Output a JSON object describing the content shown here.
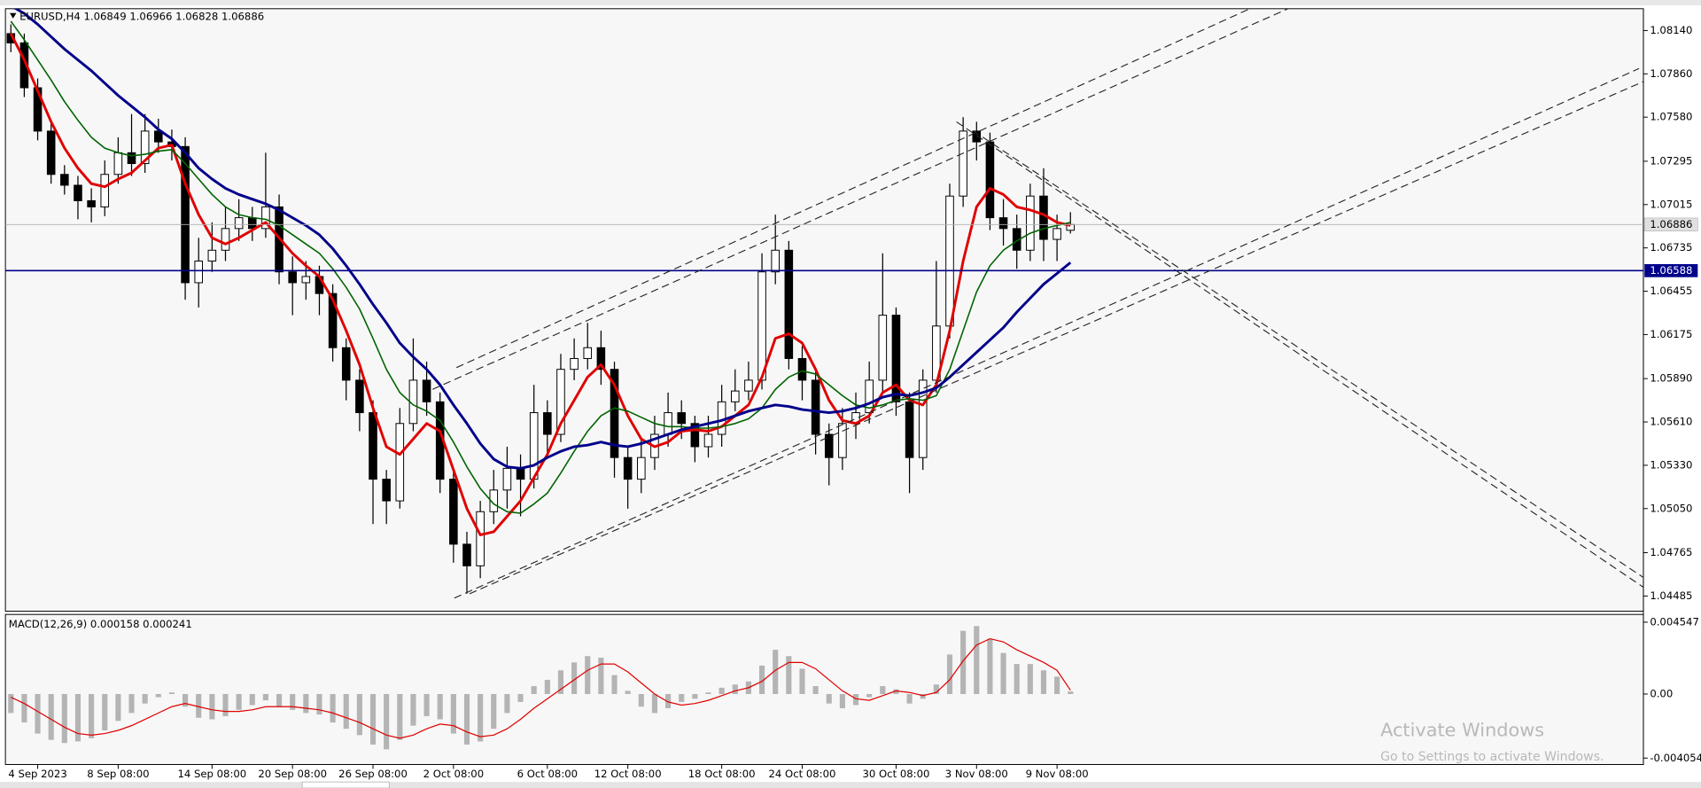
{
  "chart_data": [
    {
      "type": "candlestick",
      "title": "EURUSD,H4",
      "categories": [
        null,
        null,
        "4 Sep 2023",
        null,
        null,
        null,
        null,
        null,
        "8 Sep 08:00",
        null,
        null,
        null,
        null,
        null,
        null,
        "14 Sep 08:00",
        null,
        null,
        null,
        null,
        null,
        "20 Sep 08:00",
        null,
        null,
        null,
        null,
        null,
        "26 Sep 08:00",
        null,
        null,
        null,
        null,
        null,
        "2 Oct 08:00",
        null,
        null,
        null,
        null,
        null,
        null,
        "6 Oct 08:00",
        null,
        null,
        null,
        null,
        null,
        "12 Oct 08:00",
        null,
        null,
        null,
        null,
        null,
        null,
        "18 Oct 08:00",
        null,
        null,
        null,
        null,
        null,
        "24 Oct 08:00",
        null,
        null,
        null,
        null,
        null,
        null,
        "30 Oct 08:00",
        null,
        null,
        null,
        null,
        null,
        "3 Nov 08:00",
        null,
        null,
        null,
        null,
        null,
        "9 Nov 08:00",
        null
      ],
      "open": [
        1.0812,
        1.0806,
        1.0777,
        1.0749,
        1.0721,
        1.0714,
        1.0704,
        1.07,
        1.0721,
        1.0735,
        1.0728,
        1.0749,
        1.0742,
        1.0739,
        1.0651,
        1.0665,
        1.0672,
        1.0686,
        1.0693,
        1.0686,
        1.07,
        1.0658,
        1.0651,
        1.0655,
        1.0644,
        1.0609,
        1.0588,
        1.0567,
        1.0524,
        1.051,
        1.056,
        1.0588,
        1.0574,
        1.0524,
        1.0482,
        1.0468,
        1.0503,
        1.0517,
        1.0531,
        1.0524,
        1.0567,
        1.0553,
        1.0595,
        1.0602,
        1.0609,
        1.0595,
        1.0538,
        1.0524,
        1.0538,
        1.0553,
        1.0567,
        1.056,
        1.0545,
        1.0553,
        1.0574,
        1.0581,
        1.0588,
        1.0658,
        1.0672,
        1.0602,
        1.0588,
        1.0553,
        1.0538,
        1.056,
        1.0567,
        1.0588,
        1.063,
        1.0574,
        1.0538,
        1.0588,
        1.0623,
        1.0707,
        1.0749,
        1.0742,
        1.0693,
        1.0686,
        1.0672,
        1.0707,
        1.0679,
        1.06849
      ],
      "high": [
        1.0818,
        1.0812,
        1.0783,
        1.0755,
        1.0727,
        1.072,
        1.0712,
        1.073,
        1.0745,
        1.076,
        1.076,
        1.0757,
        1.075,
        1.0745,
        1.068,
        1.069,
        1.07,
        1.0705,
        1.07,
        1.0735,
        1.0708,
        1.0668,
        1.0665,
        1.0662,
        1.065,
        1.0615,
        1.0595,
        1.0575,
        1.053,
        1.057,
        1.0615,
        1.06,
        1.058,
        1.053,
        1.049,
        1.051,
        1.053,
        1.0545,
        1.054,
        1.0585,
        1.0575,
        1.0605,
        1.0615,
        1.0625,
        1.062,
        1.06,
        1.0545,
        1.055,
        1.0565,
        1.058,
        1.0575,
        1.0565,
        1.0565,
        1.0585,
        1.0595,
        1.06,
        1.067,
        1.0695,
        1.0678,
        1.061,
        1.0595,
        1.056,
        1.057,
        1.058,
        1.06,
        1.067,
        1.0635,
        1.058,
        1.0595,
        1.0665,
        1.0715,
        1.0758,
        1.0755,
        1.0748,
        1.0705,
        1.0695,
        1.0715,
        1.0725,
        1.0695,
        1.06966
      ],
      "low": [
        1.08,
        1.0771,
        1.0743,
        1.0715,
        1.0708,
        1.0692,
        1.069,
        1.0694,
        1.0715,
        1.072,
        1.0722,
        1.0735,
        1.073,
        1.064,
        1.0635,
        1.0658,
        1.0665,
        1.0678,
        1.0678,
        1.068,
        1.065,
        1.063,
        1.064,
        1.063,
        1.06,
        1.0575,
        1.0555,
        1.0495,
        1.0495,
        1.0505,
        1.0555,
        1.0565,
        1.0515,
        1.047,
        1.045,
        1.046,
        1.0495,
        1.0505,
        1.05,
        1.0518,
        1.054,
        1.0548,
        1.0588,
        1.0595,
        1.0585,
        1.0525,
        1.0505,
        1.0515,
        1.053,
        1.0545,
        1.055,
        1.0535,
        1.0538,
        1.0545,
        1.0568,
        1.0575,
        1.0582,
        1.065,
        1.0595,
        1.0575,
        1.054,
        1.052,
        1.053,
        1.055,
        1.056,
        1.058,
        1.0565,
        1.0515,
        1.053,
        1.058,
        1.0615,
        1.07,
        1.073,
        1.0685,
        1.0675,
        1.066,
        1.0665,
        1.0665,
        1.0665,
        1.06828
      ],
      "close": [
        1.0806,
        1.0777,
        1.0749,
        1.0721,
        1.0714,
        1.0704,
        1.07,
        1.0721,
        1.0735,
        1.0728,
        1.0749,
        1.0742,
        1.0739,
        1.0651,
        1.0665,
        1.0672,
        1.0686,
        1.0693,
        1.0686,
        1.07,
        1.0658,
        1.0651,
        1.0655,
        1.0644,
        1.0609,
        1.0588,
        1.0567,
        1.0524,
        1.051,
        1.056,
        1.0588,
        1.0574,
        1.0524,
        1.0482,
        1.0468,
        1.0503,
        1.0517,
        1.0531,
        1.0524,
        1.0567,
        1.0553,
        1.0595,
        1.0602,
        1.0609,
        1.0595,
        1.0538,
        1.0524,
        1.0538,
        1.0553,
        1.0567,
        1.056,
        1.0545,
        1.0553,
        1.0574,
        1.0581,
        1.0588,
        1.0658,
        1.0672,
        1.0602,
        1.0588,
        1.0553,
        1.0538,
        1.056,
        1.0567,
        1.0588,
        1.063,
        1.0574,
        1.0538,
        1.0588,
        1.0623,
        1.0707,
        1.0749,
        1.0742,
        1.0693,
        1.0686,
        1.0672,
        1.0707,
        1.0679,
        1.0686,
        1.06886
      ],
      "up_color": "#ffffff",
      "down_color": "#000000",
      "wick_color": "#000000",
      "lines": [
        {
          "color": "#e00000",
          "values": [
            1.0812,
            1.0795,
            1.0775,
            1.0755,
            1.0738,
            1.0725,
            1.0715,
            1.0713,
            1.0718,
            1.0722,
            1.073,
            1.0738,
            1.074,
            1.0715,
            1.0695,
            1.068,
            1.0676,
            1.068,
            1.0685,
            1.069,
            1.068,
            1.067,
            1.0662,
            1.0655,
            1.064,
            1.062,
            1.0598,
            1.057,
            1.0545,
            1.054,
            1.055,
            1.056,
            1.0555,
            1.053,
            1.0505,
            1.0488,
            1.049,
            1.05,
            1.051,
            1.0525,
            1.054,
            1.056,
            1.0575,
            1.059,
            1.0598,
            1.0585,
            1.0565,
            1.055,
            1.0545,
            1.0548,
            1.0555,
            1.0556,
            1.0555,
            1.0558,
            1.0565,
            1.0572,
            1.059,
            1.0615,
            1.0618,
            1.0612,
            1.0595,
            1.0575,
            1.0562,
            1.056,
            1.0565,
            1.058,
            1.0585,
            1.0575,
            1.0572,
            1.0585,
            1.062,
            1.0665,
            1.07,
            1.0712,
            1.0708,
            1.07,
            1.0698,
            1.0695,
            1.069,
            1.0688
          ]
        },
        {
          "color": "#006400",
          "values": [
            1.082,
            1.0808,
            1.0795,
            1.0782,
            1.0768,
            1.0756,
            1.0745,
            1.0738,
            1.0735,
            1.0733,
            1.0734,
            1.0736,
            1.0737,
            1.0728,
            1.0718,
            1.0708,
            1.07,
            1.0695,
            1.0693,
            1.0692,
            1.0688,
            1.0682,
            1.0676,
            1.067,
            1.066,
            1.0648,
            1.0634,
            1.0615,
            1.0595,
            1.058,
            1.0572,
            1.0568,
            1.0562,
            1.0548,
            1.0532,
            1.0518,
            1.0508,
            1.0503,
            1.0502,
            1.0508,
            1.0515,
            1.0528,
            1.0542,
            1.0555,
            1.0565,
            1.057,
            1.0568,
            1.0564,
            1.056,
            1.0558,
            1.0558,
            1.0557,
            1.0557,
            1.0558,
            1.056,
            1.0563,
            1.057,
            1.0582,
            1.059,
            1.0594,
            1.0592,
            1.0585,
            1.0578,
            1.0572,
            1.057,
            1.0572,
            1.0575,
            1.0576,
            1.0575,
            1.0578,
            1.0595,
            1.062,
            1.0645,
            1.0662,
            1.0672,
            1.0678,
            1.0683,
            1.0686,
            1.0688,
            1.069
          ]
        },
        {
          "color": "#00008b",
          "values": [
            1.083,
            1.0825,
            1.0818,
            1.081,
            1.0802,
            1.0795,
            1.0788,
            1.078,
            1.0772,
            1.0765,
            1.0758,
            1.075,
            1.0744,
            1.0735,
            1.0725,
            1.0718,
            1.0712,
            1.0708,
            1.0705,
            1.0702,
            1.0698,
            1.0693,
            1.0688,
            1.0682,
            1.0673,
            1.0662,
            1.065,
            1.0637,
            1.0625,
            1.0612,
            1.0603,
            1.0595,
            1.0585,
            1.0572,
            1.056,
            1.0547,
            1.0537,
            1.0532,
            1.0531,
            1.0533,
            1.0538,
            1.0542,
            1.0545,
            1.0546,
            1.0548,
            1.0546,
            1.0545,
            1.0547,
            1.055,
            1.0553,
            1.0556,
            1.0558,
            1.056,
            1.0562,
            1.0565,
            1.0568,
            1.057,
            1.0572,
            1.0571,
            1.0569,
            1.0568,
            1.0567,
            1.0568,
            1.057,
            1.0573,
            1.0577,
            1.0579,
            1.0578,
            1.058,
            1.0583,
            1.059,
            1.0598,
            1.0606,
            1.0614,
            1.0622,
            1.0632,
            1.0641,
            1.065,
            1.0657,
            1.0664
          ]
        }
      ],
      "hlines": [
        {
          "value": 1.06588,
          "color": "#00008b"
        }
      ],
      "ylim": [
        1.04387,
        1.08281
      ],
      "yticks": [
        {
          "value": 1.0814,
          "label": "1.08140"
        },
        {
          "value": 1.0786,
          "label": "1.07860"
        },
        {
          "value": 1.0758,
          "label": "1.07580"
        },
        1.07295,
        1.07015,
        1.06735,
        1.06455,
        1.06175,
        {
          "value": 1.0589,
          "label": "1.05890"
        },
        {
          "value": 1.0561,
          "label": "1.05610"
        },
        {
          "value": 1.0533,
          "label": "1.05330"
        },
        {
          "value": 1.0505,
          "label": "1.05050"
        },
        1.04765,
        1.04485
      ],
      "grid": false
    },
    {
      "type": "macd",
      "title": "MACD(12,26,9)",
      "macd": [
        -0.0012,
        -0.0018,
        -0.0025,
        -0.0029,
        -0.0031,
        -0.003,
        -0.0028,
        -0.0023,
        -0.0017,
        -0.0012,
        -0.0006,
        -0.0002,
        0.0001,
        -0.0008,
        -0.0015,
        -0.0016,
        -0.0014,
        -0.001,
        -0.0007,
        -0.0004,
        -0.0008,
        -0.001,
        -0.0012,
        -0.0013,
        -0.0018,
        -0.0022,
        -0.0026,
        -0.0032,
        -0.0035,
        -0.0029,
        -0.002,
        -0.0014,
        -0.0016,
        -0.0025,
        -0.0032,
        -0.003,
        -0.0022,
        -0.0012,
        -0.0005,
        0.0005,
        0.0009,
        0.0015,
        0.002,
        0.0024,
        0.0023,
        0.0012,
        0.0002,
        -0.0008,
        -0.0012,
        -0.0009,
        -0.0005,
        -0.0003,
        0.0001,
        0.0004,
        0.0006,
        0.0008,
        0.0018,
        0.0028,
        0.0024,
        0.0016,
        0.0005,
        -0.0006,
        -0.0009,
        -0.0007,
        -0.0002,
        0.0005,
        0.0003,
        -0.0006,
        -0.0003,
        0.0006,
        0.0025,
        0.004,
        0.0043,
        0.0035,
        0.0026,
        0.0019,
        0.0019,
        0.0015,
        0.0011,
        0.000158
      ],
      "signal": [
        -0.0002,
        -0.0006,
        -0.0011,
        -0.0016,
        -0.0021,
        -0.0025,
        -0.0026,
        -0.0025,
        -0.0023,
        -0.002,
        -0.0016,
        -0.0012,
        -0.0008,
        -0.0006,
        -0.0008,
        -0.001,
        -0.0011,
        -0.0011,
        -0.001,
        -0.0008,
        -0.0008,
        -0.0008,
        -0.0009,
        -0.001,
        -0.0012,
        -0.0015,
        -0.0018,
        -0.0022,
        -0.0026,
        -0.0028,
        -0.0026,
        -0.0022,
        -0.0019,
        -0.002,
        -0.0024,
        -0.0027,
        -0.0026,
        -0.0022,
        -0.0016,
        -0.0009,
        -0.0003,
        0.0003,
        0.0009,
        0.0015,
        0.0019,
        0.0019,
        0.0014,
        0.0007,
        0,
        -0.0005,
        -0.0007,
        -0.0006,
        -0.0004,
        -0.0001,
        0.0002,
        0.0004,
        0.0008,
        0.0015,
        0.002,
        0.002,
        0.0016,
        0.0009,
        0.0002,
        -0.0003,
        -0.0004,
        -0.0001,
        0.0002,
        0.0001,
        -0.0001,
        0.0001,
        0.0009,
        0.0021,
        0.0031,
        0.0035,
        0.0033,
        0.0028,
        0.0024,
        0.002,
        0.0015,
        0.000241
      ],
      "hist_color": "#b4b4b4",
      "signal_color": "#e00000",
      "ylim": [
        -0.00446,
        0.005037
      ],
      "yticks": [
        0.004547,
        {
          "value": 0,
          "label": "0.00"
        },
        -0.004054
      ]
    }
  ],
  "watermark": {
    "title": "Activate Windows",
    "subtitle": "Go to Settings to activate Windows."
  }
}
